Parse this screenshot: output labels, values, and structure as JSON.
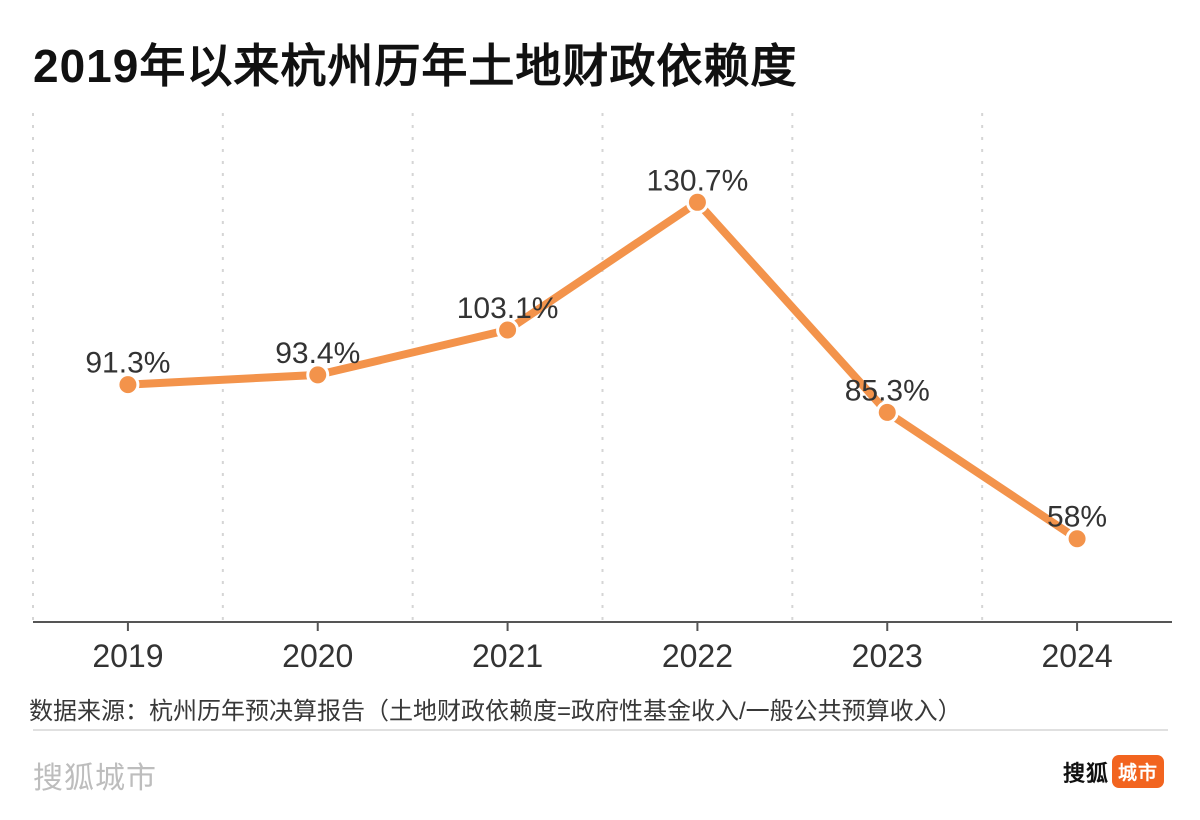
{
  "title": "2019年以来杭州历年土地财政依赖度",
  "chart_data": {
    "type": "line",
    "title": "2019年以来杭州历年土地财政依赖度",
    "categories": [
      "2019",
      "2020",
      "2021",
      "2022",
      "2023",
      "2024"
    ],
    "values": [
      91.3,
      93.4,
      103.1,
      130.7,
      85.3,
      58
    ],
    "point_labels": [
      "91.3%",
      "93.4%",
      "103.1%",
      "130.7%",
      "85.3%",
      "58%"
    ],
    "xlabel": "",
    "ylabel": "",
    "ylim": [
      40,
      150
    ],
    "grid": "vertical-dashed-at-category-boundaries",
    "legend": "none",
    "colors": {
      "line": "#F3934B",
      "point_fill": "#F3934B",
      "point_border": "#ffffff",
      "value_label": "#333333",
      "axis_line": "#555555",
      "tick_label": "#333333",
      "gridline": "#d5d5d5"
    }
  },
  "source_note": "数据来源：杭州历年预决算报告（土地财政依赖度=政府性基金收入/一般公共预算收入）",
  "footer": {
    "watermark": "搜狐城市",
    "logo": {
      "brand_text": "搜狐",
      "badge_text": "城市",
      "badge_color": "#F2641F"
    }
  }
}
